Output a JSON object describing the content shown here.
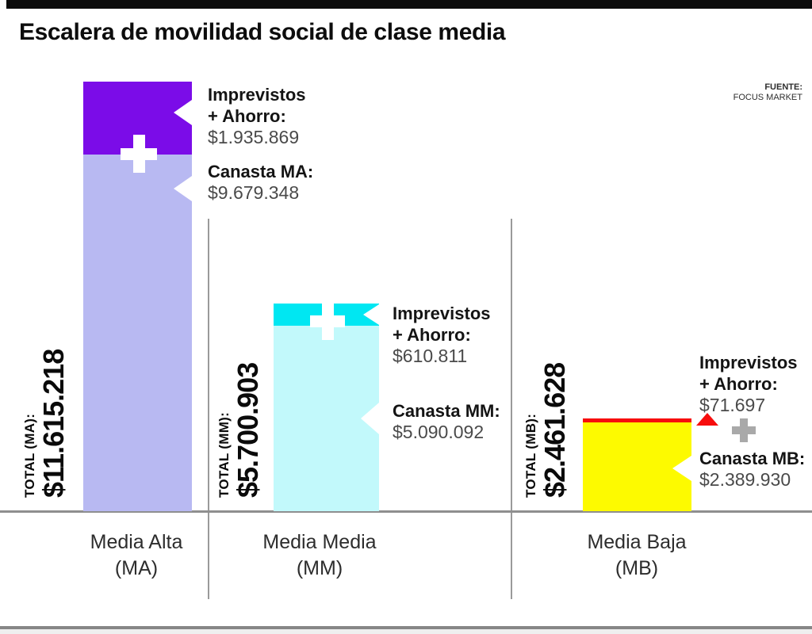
{
  "title": "Escalera de movilidad social de clase media",
  "source": {
    "label": "FUENTE:",
    "name": "FOCUS MARKET"
  },
  "colors": {
    "ma_top": "#7b0ce8",
    "ma_bottom": "#b8b9f2",
    "mm_top": "#00e7f2",
    "mm_bottom": "#c2f9fb",
    "mb_top": "#f70d0d",
    "mb_bottom": "#fdfa00",
    "marker_red": "#f70d0d",
    "plus_gray": "#a9a9a9",
    "axis_gray": "#8f8f8f"
  },
  "chart_data": {
    "type": "bar",
    "stacked": true,
    "title": "Escalera de movilidad social de clase media",
    "categories": [
      "Media Alta (MA)",
      "Media Media (MM)",
      "Media Baja (MB)"
    ],
    "series": [
      {
        "name": "Canasta",
        "values": [
          9679348,
          5090092,
          2389930
        ]
      },
      {
        "name": "Imprevistos + Ahorro",
        "values": [
          1935869,
          610811,
          71697
        ]
      }
    ],
    "totals": [
      11615218,
      5700903,
      2461628
    ],
    "ylim": [
      0,
      12000000
    ],
    "grid": false,
    "legend": "inline-callouts",
    "source": "FOCUS MARKET"
  },
  "bars": [
    {
      "total_label": "TOTAL (MA):",
      "total_value": "$11.615.218",
      "imprevistos_line1": "Imprevistos",
      "imprevistos_line2": "+ Ahorro:",
      "imprevistos_value": "$1.935.869",
      "canasta_label": "Canasta MA:",
      "canasta_value": "$9.679.348",
      "category_line1": "Media Alta",
      "category_line2": "(MA)"
    },
    {
      "total_label": "TOTAL (MM):",
      "total_value": "$5.700.903",
      "imprevistos_line1": "Imprevistos",
      "imprevistos_line2": "+ Ahorro:",
      "imprevistos_value": "$610.811",
      "canasta_label": "Canasta MM:",
      "canasta_value": "$5.090.092",
      "category_line1": "Media Media",
      "category_line2": "(MM)"
    },
    {
      "total_label": "TOTAL (MB):",
      "total_value": "$2.461.628",
      "imprevistos_line1": "Imprevistos",
      "imprevistos_line2": "+ Ahorro:",
      "imprevistos_value": "$71.697",
      "canasta_label": "Canasta MB:",
      "canasta_value": "$2.389.930",
      "category_line1": "Media Baja",
      "category_line2": "(MB)"
    }
  ]
}
